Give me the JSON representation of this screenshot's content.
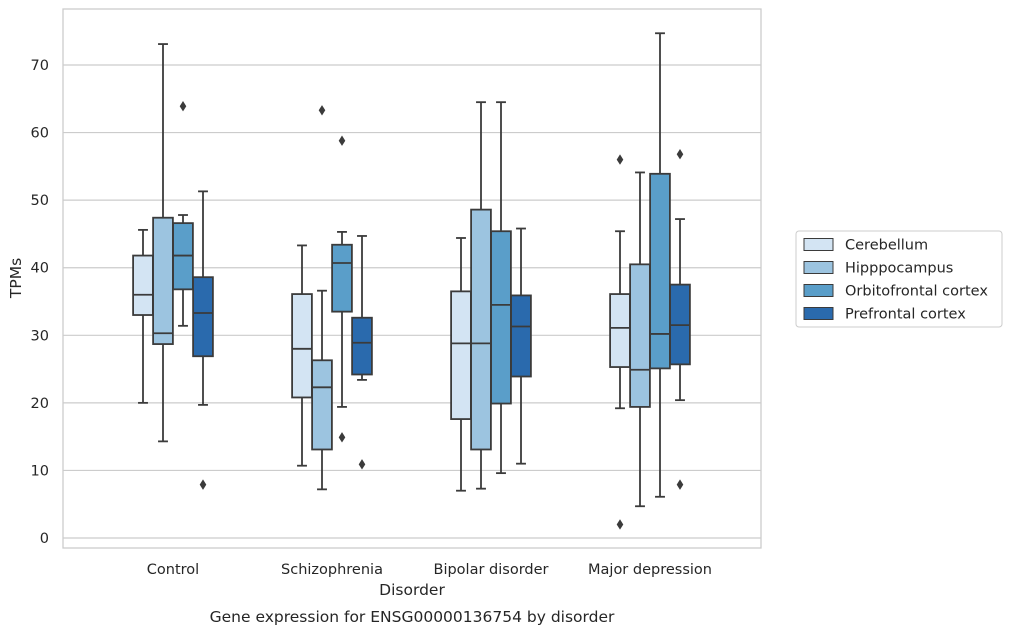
{
  "chart_data": {
    "type": "box",
    "caption": "Gene expression for ENSG00000136754 by disorder",
    "xlabel": "Disorder",
    "ylabel": "TPMs",
    "ylim": [
      -1.5,
      78.5
    ],
    "yticks": [
      0,
      10,
      20,
      30,
      40,
      50,
      60,
      70
    ],
    "grid": "horizontal",
    "legend_position": "right",
    "categories": [
      "Control",
      "Schizophrenia",
      "Bipolar disorder",
      "Major depression"
    ],
    "series": [
      {
        "name": "Cerebellum",
        "color": "#d3e4f3",
        "boxes": [
          {
            "min": 20.0,
            "q1": 33.0,
            "median": 36.0,
            "q3": 41.8,
            "max": 45.6,
            "outliers": []
          },
          {
            "min": 10.7,
            "q1": 20.8,
            "median": 28.0,
            "q3": 36.1,
            "max": 43.3,
            "outliers": []
          },
          {
            "min": 7.0,
            "q1": 17.6,
            "median": 28.8,
            "q3": 36.5,
            "max": 44.4,
            "outliers": []
          },
          {
            "min": 19.2,
            "q1": 25.3,
            "median": 31.1,
            "q3": 36.1,
            "max": 45.4,
            "outliers": [
              56.0,
              2.0
            ]
          }
        ]
      },
      {
        "name": "Hipppocampus",
        "color": "#9cc4e0",
        "boxes": [
          {
            "min": 14.3,
            "q1": 28.7,
            "median": 30.3,
            "q3": 47.4,
            "max": 73.1,
            "outliers": []
          },
          {
            "min": 7.2,
            "q1": 13.1,
            "median": 22.3,
            "q3": 26.3,
            "max": 36.6,
            "outliers": [
              63.3
            ]
          },
          {
            "min": 7.3,
            "q1": 13.1,
            "median": 28.8,
            "q3": 48.6,
            "max": 64.5,
            "outliers": []
          },
          {
            "min": 4.7,
            "q1": 19.4,
            "median": 24.9,
            "q3": 40.5,
            "max": 54.1,
            "outliers": []
          }
        ]
      },
      {
        "name": "Orbitofrontal cortex",
        "color": "#5a9ec9",
        "boxes": [
          {
            "min": 31.4,
            "q1": 36.8,
            "median": 41.8,
            "q3": 46.6,
            "max": 47.8,
            "outliers": [
              63.9
            ]
          },
          {
            "min": 19.4,
            "q1": 33.5,
            "median": 40.7,
            "q3": 43.4,
            "max": 45.3,
            "outliers": [
              58.8,
              14.9
            ]
          },
          {
            "min": 9.6,
            "q1": 19.9,
            "median": 34.5,
            "q3": 45.4,
            "max": 64.5,
            "outliers": []
          },
          {
            "min": 6.1,
            "q1": 25.1,
            "median": 30.2,
            "q3": 53.9,
            "max": 74.7,
            "outliers": []
          }
        ]
      },
      {
        "name": "Prefrontal cortex",
        "color": "#2a6aad",
        "boxes": [
          {
            "min": 19.7,
            "q1": 26.9,
            "median": 33.3,
            "q3": 38.6,
            "max": 51.3,
            "outliers": [
              7.9
            ]
          },
          {
            "min": 23.4,
            "q1": 24.2,
            "median": 28.9,
            "q3": 32.6,
            "max": 44.7,
            "outliers": [
              10.9
            ]
          },
          {
            "min": 11.0,
            "q1": 23.9,
            "median": 31.3,
            "q3": 35.9,
            "max": 45.8,
            "outliers": []
          },
          {
            "min": 20.4,
            "q1": 25.7,
            "median": 31.5,
            "q3": 37.5,
            "max": 47.2,
            "outliers": [
              56.8,
              7.9
            ]
          }
        ]
      }
    ]
  }
}
